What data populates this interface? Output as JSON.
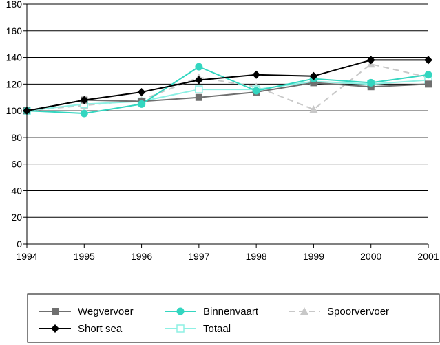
{
  "chart_data": {
    "type": "line",
    "title": "",
    "xlabel": "",
    "ylabel": "",
    "x": [
      "1994",
      "1995",
      "1996",
      "1997",
      "1998",
      "1999",
      "2000",
      "2001"
    ],
    "ylim": [
      0,
      180
    ],
    "yticks": [
      0,
      20,
      40,
      60,
      80,
      100,
      120,
      140,
      160,
      180
    ],
    "grid": "horizontal",
    "legend_position": "bottom",
    "series": [
      {
        "name": "Wegvervoer",
        "values": [
          100,
          108,
          107,
          110,
          114,
          121,
          118,
          120
        ],
        "color": "#6f6f6f",
        "marker": "square",
        "dashed": false
      },
      {
        "name": "Binnenvaart",
        "values": [
          100,
          98,
          105,
          133,
          115,
          124,
          121,
          127
        ],
        "color": "#33d6c0",
        "marker": "circle",
        "dashed": false
      },
      {
        "name": "Spoorvervoer",
        "values": [
          100,
          104,
          108,
          125,
          118,
          101,
          135,
          125
        ],
        "color": "#c8c8c8",
        "marker": "triangle",
        "dashed": true
      },
      {
        "name": "Short sea",
        "values": [
          100,
          108,
          114,
          123,
          127,
          126,
          138,
          138
        ],
        "color": "#000000",
        "marker": "diamond",
        "dashed": false
      },
      {
        "name": "Totaal",
        "values": [
          100,
          105,
          107,
          116,
          116,
          122,
          120,
          123
        ],
        "color": "#8ef0e4",
        "marker": "square-hollow",
        "dashed": false
      }
    ]
  }
}
